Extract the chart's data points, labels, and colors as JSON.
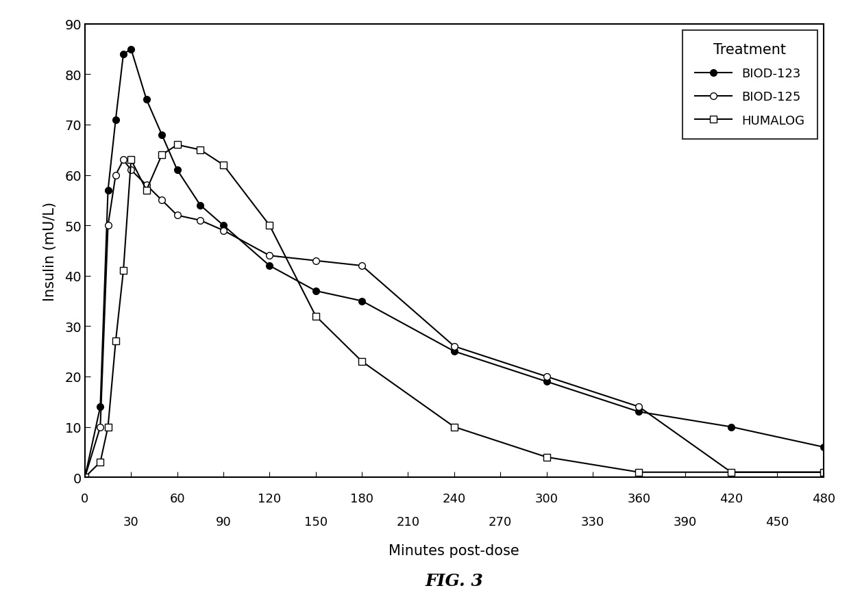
{
  "biod123_x": [
    0,
    10,
    15,
    20,
    25,
    30,
    40,
    50,
    60,
    75,
    90,
    120,
    150,
    180,
    240,
    300,
    360,
    420,
    480
  ],
  "biod123_y": [
    0,
    14,
    57,
    71,
    84,
    85,
    75,
    68,
    61,
    54,
    50,
    42,
    37,
    35,
    25,
    19,
    13,
    10,
    6
  ],
  "biod125_x": [
    0,
    10,
    15,
    20,
    25,
    30,
    40,
    50,
    60,
    75,
    90,
    120,
    150,
    180,
    240,
    300,
    360,
    420,
    480
  ],
  "biod125_y": [
    0,
    10,
    50,
    60,
    63,
    61,
    58,
    55,
    52,
    51,
    49,
    44,
    43,
    42,
    26,
    20,
    14,
    1,
    1
  ],
  "humalog_x": [
    0,
    10,
    15,
    20,
    25,
    30,
    40,
    50,
    60,
    75,
    90,
    120,
    150,
    180,
    240,
    300,
    360,
    420,
    480
  ],
  "humalog_y": [
    0,
    3,
    10,
    27,
    41,
    63,
    57,
    64,
    66,
    65,
    62,
    50,
    32,
    23,
    10,
    4,
    1,
    1,
    1
  ],
  "yticks": [
    0,
    10,
    20,
    30,
    40,
    50,
    60,
    70,
    80,
    90
  ],
  "xticks_all": [
    0,
    30,
    60,
    90,
    120,
    150,
    180,
    210,
    240,
    270,
    300,
    330,
    360,
    390,
    420,
    450,
    480
  ],
  "xticks_row1": [
    0,
    60,
    120,
    180,
    240,
    300,
    360,
    420,
    480
  ],
  "xticks_row2": [
    30,
    90,
    150,
    210,
    270,
    330,
    390,
    450
  ],
  "xlabel": "Minutes post-dose",
  "ylabel": "Insulin (mU/L)",
  "legend_title": "Treatment",
  "legend_entries": [
    "BIOD-123",
    "BIOD-125",
    "HUMALOG"
  ],
  "fig_label": "FIG. 3",
  "ylim": [
    0,
    90
  ],
  "xlim": [
    0,
    480
  ],
  "background_color": "#ffffff",
  "line_color": "#000000"
}
